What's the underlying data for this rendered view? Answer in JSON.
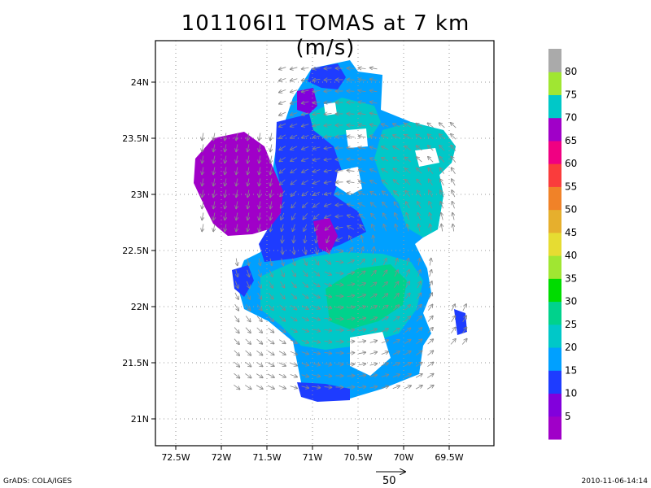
{
  "title": "101106I1 TOMAS at 7 km (m/s)",
  "footer": {
    "left": "GrADS: COLA/IGES",
    "right": "2010-11-06-14:14",
    "reference_vector_label": "50"
  },
  "map": {
    "x_ticks": [
      "72.5W",
      "72W",
      "71.5W",
      "71W",
      "70.5W",
      "70W",
      "69.5W"
    ],
    "y_ticks": [
      "24N",
      "23.5N",
      "23N",
      "22.5N",
      "22N",
      "21.5N",
      "21N"
    ],
    "lon_range": [
      -72.7,
      -69.0
    ],
    "lat_range": [
      20.8,
      24.35
    ],
    "grid_lines": true
  },
  "colorbar": {
    "labels": [
      "5",
      "10",
      "15",
      "20",
      "25",
      "30",
      "35",
      "40",
      "45",
      "50",
      "55",
      "60",
      "65",
      "70",
      "75",
      "80"
    ],
    "colors": [
      "#a000c8",
      "#8200dc",
      "#1e3cff",
      "#00a0ff",
      "#00c8c8",
      "#00d28c",
      "#00dc00",
      "#a0e632",
      "#e6dc32",
      "#e6af2d",
      "#f08228",
      "#fa3c3c",
      "#f00082",
      "#a000c8",
      "#00c8c8",
      "#a0e632",
      "#aaaaaa"
    ]
  },
  "icons": {
    "wind_arrows": "wind-vector-arrow-icons",
    "reference_arrow": "reference-arrow-icon"
  }
}
